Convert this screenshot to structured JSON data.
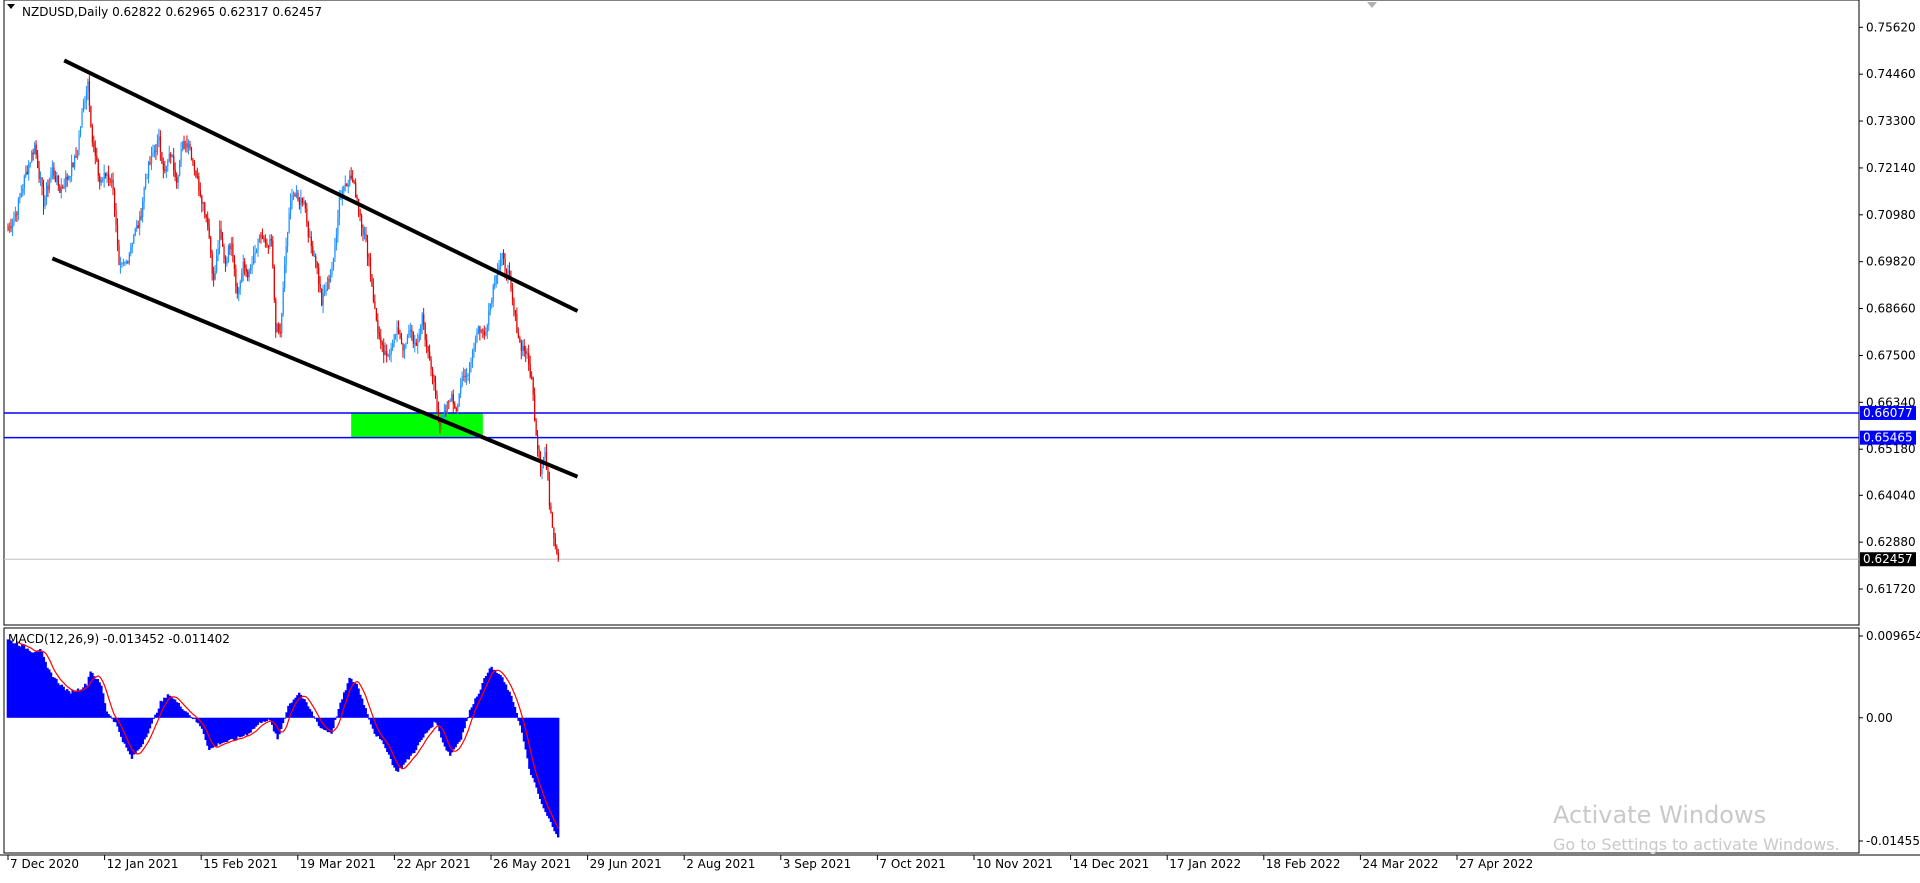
{
  "symbol_header": "NZDUSD,Daily  0.62822 0.62965 0.62317 0.62457",
  "macd_header": "MACD(12,26,9) -0.013452 -0.011402",
  "watermark": {
    "title": "Activate Windows",
    "subtitle": "Go to Settings to activate Windows."
  },
  "colors": {
    "bull": "#1e90ff",
    "bear": "#e00000",
    "trendline": "#000000",
    "level_line": "#0000ff",
    "zone": "#00ff00",
    "macd_hist": "#0000ff",
    "macd_signal": "#ff0000",
    "current_price_line": "#c0c0c0"
  },
  "chart_data": {
    "type": "candlestick",
    "price_axis": {
      "ticks": [
        "0.75620",
        "0.74460",
        "0.73300",
        "0.72140",
        "0.70980",
        "0.69820",
        "0.68660",
        "0.67500",
        "0.66340",
        "0.65180",
        "0.64040",
        "0.62880",
        "0.61720"
      ],
      "range": [
        0.613,
        0.7585
      ]
    },
    "time_axis": {
      "labels": [
        "7 Dec 2020",
        "12 Jan 2021",
        "15 Feb 2021",
        "19 Mar 2021",
        "22 Apr 2021",
        "26 May 2021",
        "29 Jun 2021",
        "2 Aug 2021",
        "3 Sep 2021",
        "7 Oct 2021",
        "10 Nov 2021",
        "14 Dec 2021",
        "17 Jan 2022",
        "18 Feb 2022",
        "24 Mar 2022",
        "27 Apr 2022"
      ]
    },
    "bar_count": 373,
    "anchors": [
      [
        0,
        0.706
      ],
      [
        6,
        0.711
      ],
      [
        12,
        0.72
      ],
      [
        18,
        0.727
      ],
      [
        24,
        0.713
      ],
      [
        30,
        0.721
      ],
      [
        35,
        0.716
      ],
      [
        40,
        0.719
      ],
      [
        46,
        0.724
      ],
      [
        51,
        0.737
      ],
      [
        54,
        0.743
      ],
      [
        57,
        0.728
      ],
      [
        62,
        0.718
      ],
      [
        67,
        0.72
      ],
      [
        71,
        0.717
      ],
      [
        75,
        0.696
      ],
      [
        80,
        0.698
      ],
      [
        85,
        0.705
      ],
      [
        89,
        0.708
      ],
      [
        93,
        0.719
      ],
      [
        98,
        0.725
      ],
      [
        102,
        0.728
      ],
      [
        106,
        0.72
      ],
      [
        110,
        0.725
      ],
      [
        114,
        0.719
      ],
      [
        118,
        0.727
      ],
      [
        122,
        0.728
      ],
      [
        127,
        0.72
      ],
      [
        131,
        0.714
      ],
      [
        135,
        0.708
      ],
      [
        139,
        0.693
      ],
      [
        143,
        0.705
      ],
      [
        147,
        0.698
      ],
      [
        151,
        0.704
      ],
      [
        155,
        0.69
      ],
      [
        159,
        0.697
      ],
      [
        163,
        0.695
      ],
      [
        167,
        0.7
      ],
      [
        171,
        0.705
      ],
      [
        175,
        0.701
      ],
      [
        178,
        0.703
      ],
      [
        181,
        0.682
      ],
      [
        184,
        0.68
      ],
      [
        188,
        0.702
      ],
      [
        192,
        0.716
      ],
      [
        196,
        0.713
      ],
      [
        200,
        0.714
      ],
      [
        204,
        0.703
      ],
      [
        208,
        0.699
      ],
      [
        212,
        0.688
      ],
      [
        216,
        0.693
      ],
      [
        220,
        0.698
      ],
      [
        224,
        0.714
      ],
      [
        228,
        0.718
      ],
      [
        232,
        0.719
      ],
      [
        236,
        0.714
      ],
      [
        240,
        0.706
      ],
      [
        244,
        0.699
      ],
      [
        248,
        0.686
      ],
      [
        252,
        0.677
      ],
      [
        256,
        0.674
      ],
      [
        260,
        0.679
      ],
      [
        264,
        0.681
      ],
      [
        268,
        0.676
      ],
      [
        272,
        0.682
      ],
      [
        276,
        0.676
      ],
      [
        280,
        0.685
      ],
      [
        284,
        0.675
      ],
      [
        288,
        0.668
      ],
      [
        292,
        0.658
      ],
      [
        295,
        0.66
      ],
      [
        299,
        0.665
      ],
      [
        303,
        0.662
      ],
      [
        306,
        0.668
      ],
      [
        310,
        0.67
      ],
      [
        314,
        0.676
      ],
      [
        318,
        0.682
      ],
      [
        322,
        0.68
      ],
      [
        326,
        0.688
      ],
      [
        330,
        0.696
      ],
      [
        334,
        0.699
      ],
      [
        338,
        0.695
      ],
      [
        342,
        0.686
      ],
      [
        346,
        0.678
      ],
      [
        350,
        0.676
      ],
      [
        354,
        0.669
      ],
      [
        357,
        0.656
      ],
      [
        360,
        0.647
      ],
      [
        363,
        0.651
      ],
      [
        366,
        0.639
      ],
      [
        369,
        0.631
      ],
      [
        372,
        0.6246
      ]
    ],
    "trendlines": [
      {
        "name": "channel-upper",
        "points": [
          [
            38,
            0.748
          ],
          [
            385,
            0.686
          ]
        ]
      },
      {
        "name": "channel-lower",
        "points": [
          [
            30,
            0.699
          ],
          [
            385,
            0.645
          ]
        ]
      }
    ],
    "horizontal_levels": [
      {
        "value": 0.66077,
        "label": "0.66077"
      },
      {
        "value": 0.65465,
        "label": "0.65465"
      }
    ],
    "zone": {
      "from_bar": 232,
      "to_bar": 321,
      "low": 0.65465,
      "high": 0.66077
    },
    "current_price": {
      "value": 0.62457,
      "label": "0.62457"
    },
    "macd": {
      "axis_ticks": [
        "0.009654",
        "0.00",
        "-0.014552"
      ],
      "range": [
        -0.014552,
        0.009654
      ],
      "anchors": [
        [
          0,
          0.0092
        ],
        [
          8,
          0.0085
        ],
        [
          14,
          0.0078
        ],
        [
          18,
          0.0082
        ],
        [
          22,
          0.0058
        ],
        [
          28,
          0.0042
        ],
        [
          34,
          0.003
        ],
        [
          40,
          0.0034
        ],
        [
          44,
          0.004
        ],
        [
          46,
          0.0056
        ],
        [
          52,
          0.0038
        ],
        [
          55,
          0.0008
        ],
        [
          60,
          -0.0006
        ],
        [
          65,
          -0.0032
        ],
        [
          69,
          -0.0048
        ],
        [
          74,
          -0.0034
        ],
        [
          80,
          -0.0008
        ],
        [
          85,
          0.0018
        ],
        [
          90,
          0.0028
        ],
        [
          95,
          0.0016
        ],
        [
          101,
          0.0004
        ],
        [
          108,
          -0.0012
        ],
        [
          112,
          -0.0038
        ],
        [
          118,
          -0.003
        ],
        [
          126,
          -0.0026
        ],
        [
          134,
          -0.0018
        ],
        [
          142,
          -0.0003
        ],
        [
          146,
          -0.0004
        ],
        [
          150,
          -0.0026
        ],
        [
          156,
          0.0014
        ],
        [
          162,
          0.003
        ],
        [
          168,
          0.001
        ],
        [
          174,
          -0.0012
        ],
        [
          180,
          -0.0018
        ],
        [
          184,
          0.001
        ],
        [
          190,
          0.0046
        ],
        [
          194,
          0.004
        ],
        [
          200,
          0.0005
        ],
        [
          204,
          -0.0018
        ],
        [
          210,
          -0.0034
        ],
        [
          216,
          -0.0064
        ],
        [
          220,
          -0.0056
        ],
        [
          226,
          -0.004
        ],
        [
          232,
          -0.002
        ],
        [
          238,
          -0.0004
        ],
        [
          243,
          -0.0034
        ],
        [
          246,
          -0.0044
        ],
        [
          252,
          -0.0024
        ],
        [
          258,
          0.0014
        ],
        [
          262,
          0.003
        ],
        [
          268,
          0.006
        ],
        [
          274,
          0.005
        ],
        [
          278,
          0.0034
        ],
        [
          282,
          0.0014
        ],
        [
          286,
          -0.0018
        ],
        [
          290,
          -0.006
        ],
        [
          298,
          -0.0108
        ],
        [
          304,
          -0.0132
        ],
        [
          306,
          -0.014
        ]
      ],
      "signal_lag_bars": 5
    }
  }
}
